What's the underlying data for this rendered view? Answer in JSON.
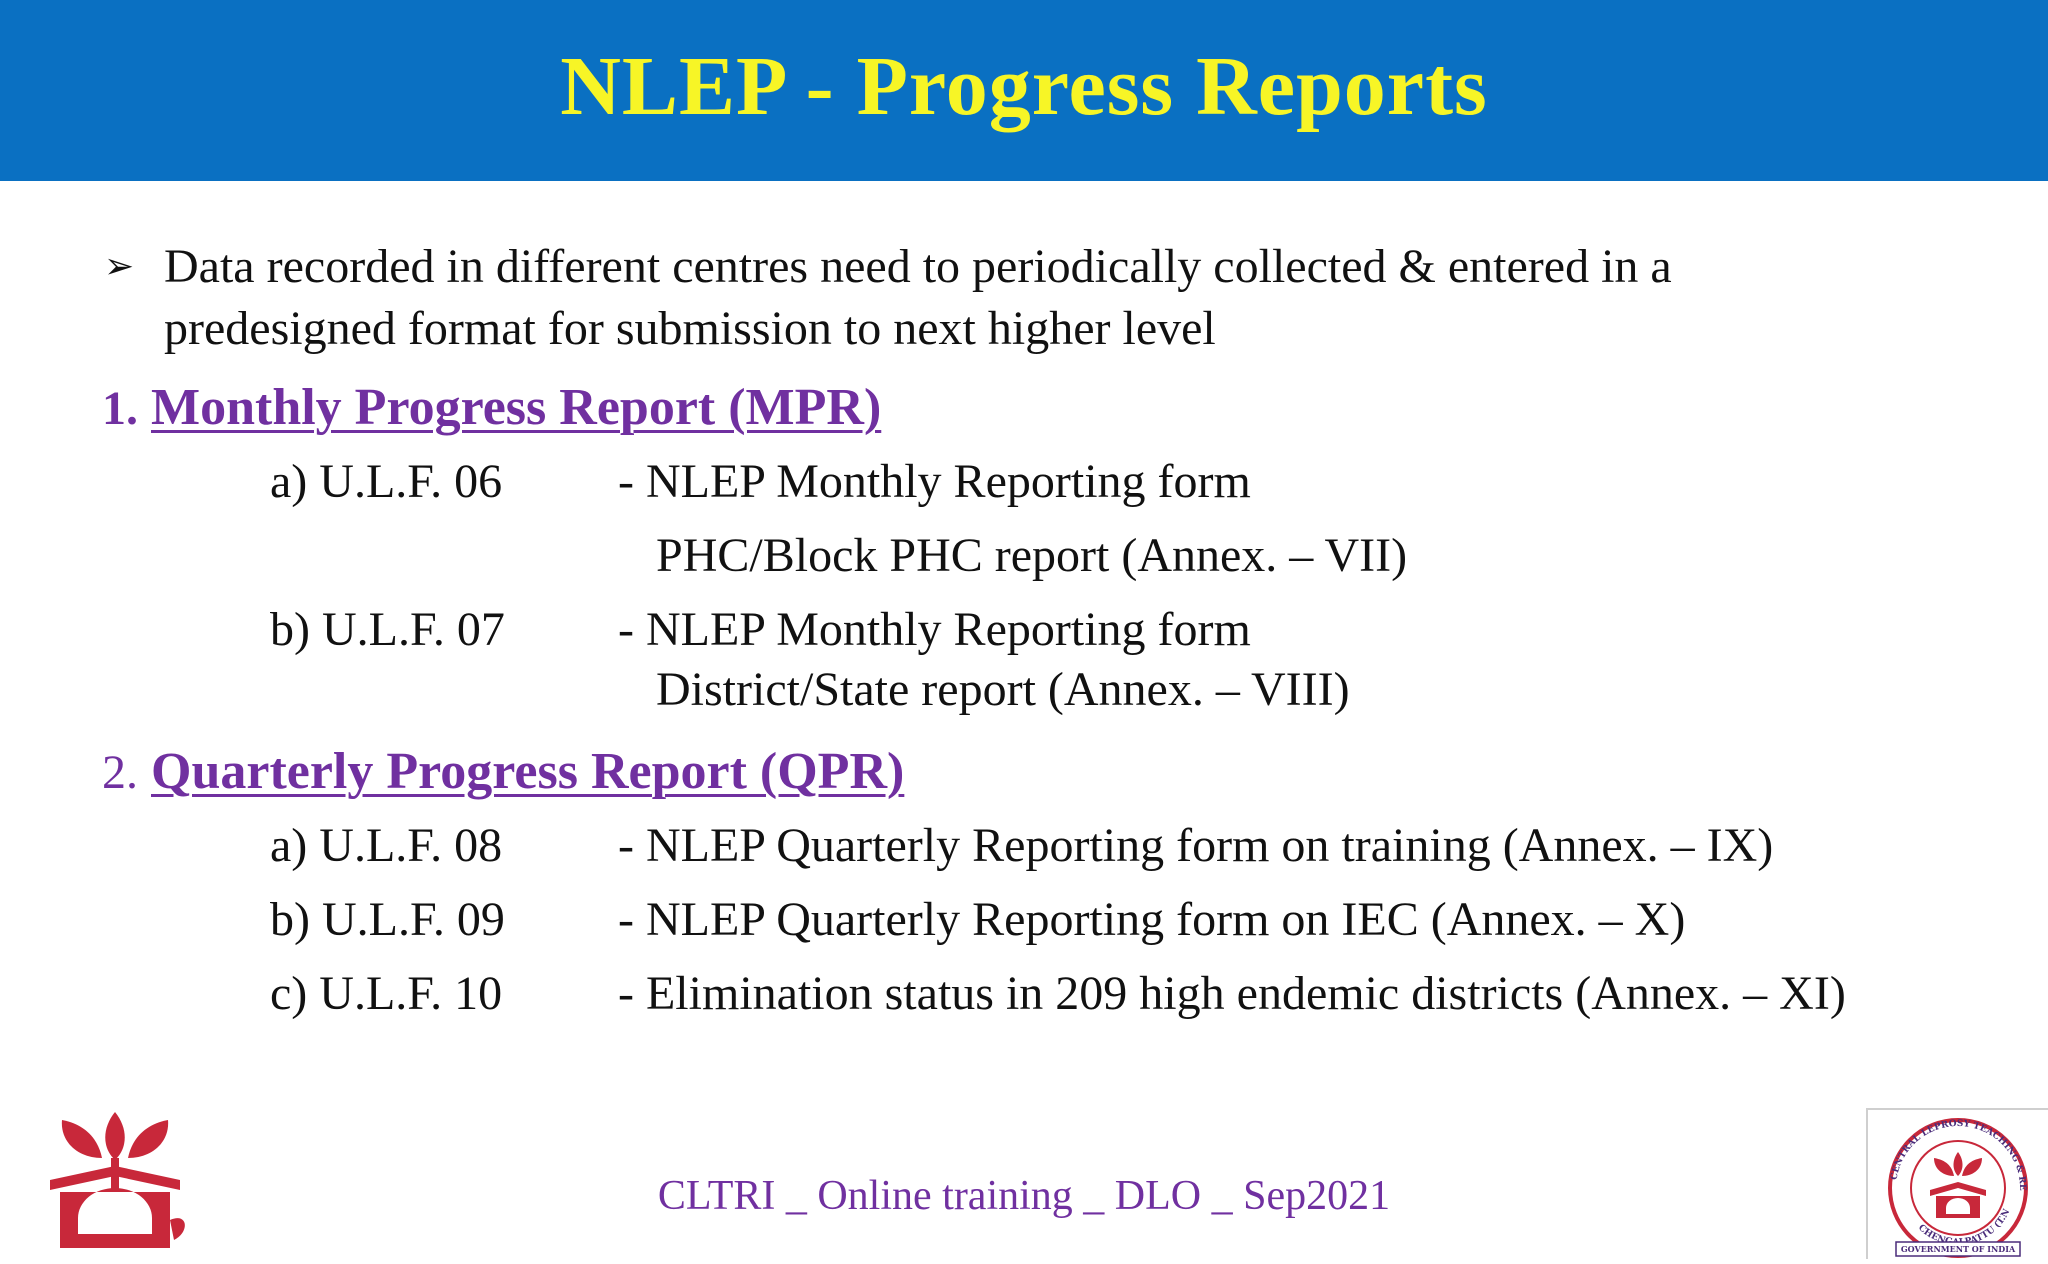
{
  "title": "NLEP - Progress Reports",
  "intro": {
    "bullet_icon": "arrow-bullet-icon",
    "line1": "Data recorded in different centres need to periodically collected & entered in a",
    "line2": "predesigned format for submission to next higher level"
  },
  "sections": [
    {
      "number": "1.",
      "title": "Monthly Progress Report (MPR)",
      "items": [
        {
          "code": "a) U.L.F. 06",
          "desc": "- NLEP Monthly Reporting form",
          "sub": "PHC/Block PHC report (Annex. – VII)"
        },
        {
          "code": "b) U.L.F. 07",
          "desc": "- NLEP Monthly Reporting form",
          "sub": "District/State report (Annex. – VIII)"
        }
      ]
    },
    {
      "number": "2.",
      "title": "Quarterly Progress Report (QPR)",
      "items": [
        {
          "code": "a) U.L.F. 08",
          "desc": "- NLEP Quarterly Reporting form on training (Annex. – IX)"
        },
        {
          "code": "b) U.L.F. 09",
          "desc": "- NLEP Quarterly Reporting form on IEC (Annex. – X)"
        },
        {
          "code": "c) U.L.F. 10",
          "desc": "- Elimination  status in 209 high endemic districts (Annex. – XI)"
        }
      ]
    }
  ],
  "footer": "CLTRI _ Online training _ DLO _ Sep2021",
  "logos": {
    "left": "lotus-house-logo-icon",
    "right": "cltri-seal-logo-icon",
    "right_text_top": "CENTRAL LEPROSY TEACHING & RESEARCH INSTITUTE",
    "right_text_bottom": "CHENGALPATTU (T.N)",
    "right_ribbon": "GOVERNMENT OF INDIA"
  },
  "colors": {
    "banner": "#0a70c2",
    "title": "#f7f526",
    "accent": "#7030a0",
    "logo_red": "#c8283a"
  }
}
